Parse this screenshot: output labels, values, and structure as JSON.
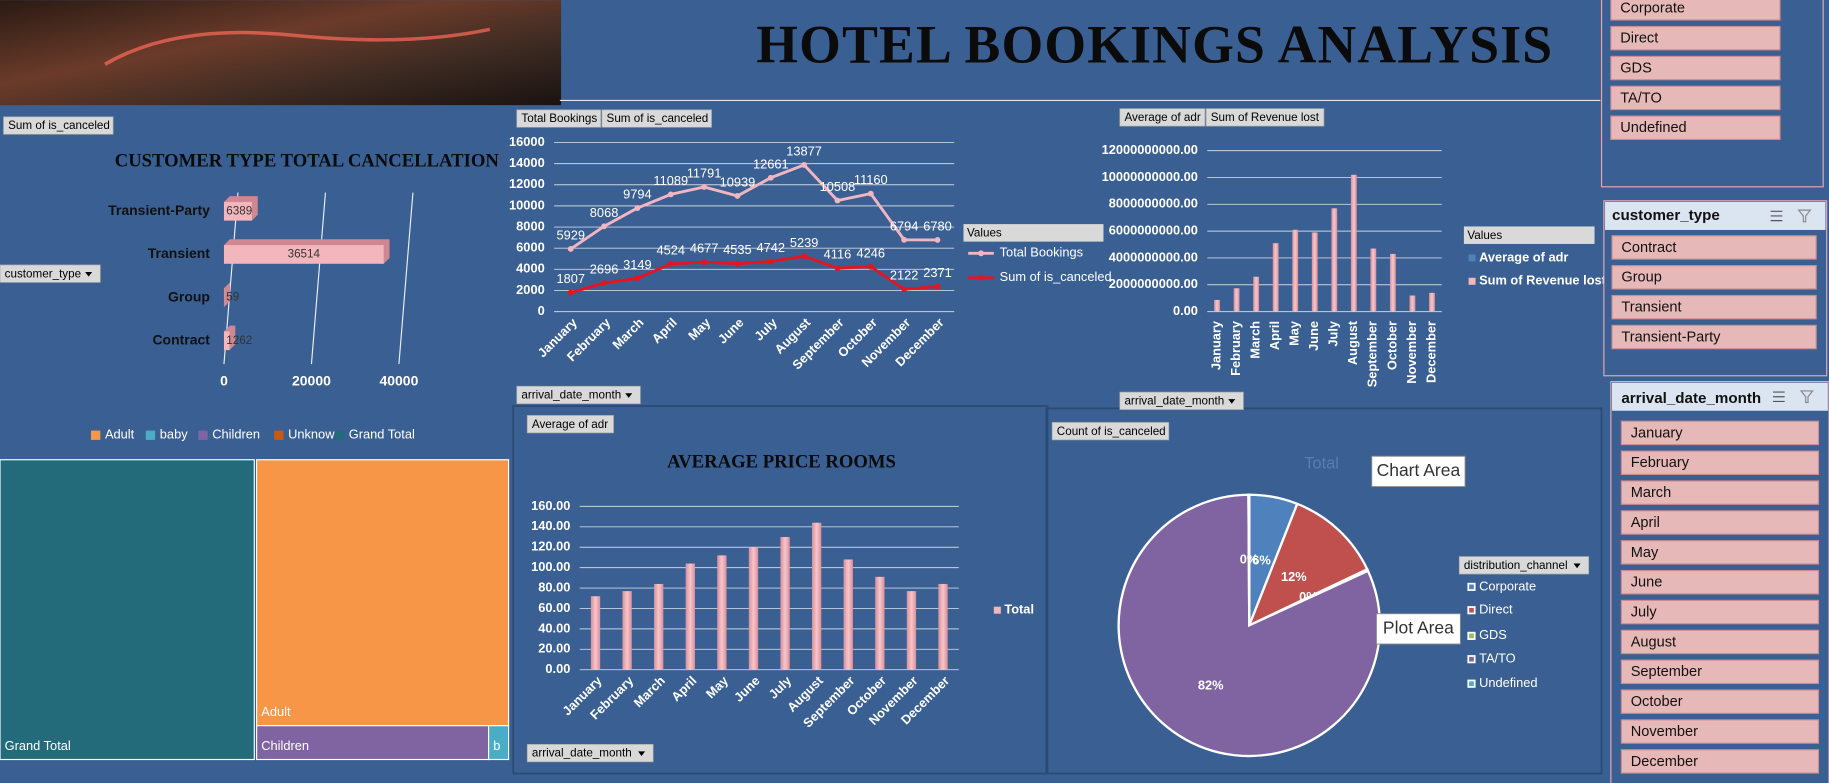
{
  "header": {
    "title": "HOTEL BOOKINGS ANALYSIS"
  },
  "chart_data": [
    {
      "type": "hbar",
      "title": "CUSTOMER TYPE TOTAL CANCELLATION",
      "field_buttons": [
        "Sum of is_canceled",
        "customer_type"
      ],
      "categories": [
        "Transient-Party",
        "Transient",
        "Group",
        "Contract"
      ],
      "values": [
        6389,
        36514,
        59,
        1262
      ],
      "color": "#f4b6bd",
      "xlim": [
        0,
        40000
      ],
      "xticks": [
        0,
        20000,
        40000
      ]
    },
    {
      "type": "line",
      "field_buttons": [
        "Total Bookings",
        "Sum of is_canceled",
        "arrival_date_month"
      ],
      "legend_title": "Values",
      "categories": [
        "January",
        "February",
        "March",
        "April",
        "May",
        "June",
        "July",
        "August",
        "September",
        "October",
        "November",
        "December"
      ],
      "series": [
        {
          "name": "Total Bookings",
          "color": "#f2b6c0",
          "values": [
            5929,
            8068,
            9794,
            11089,
            11791,
            10939,
            12661,
            13877,
            10508,
            11160,
            6794,
            6780
          ]
        },
        {
          "name": "Sum of is_canceled",
          "color": "#e3161f",
          "values": [
            1807,
            2696,
            3149,
            4524,
            4677,
            4535,
            4742,
            5239,
            4116,
            4246,
            2122,
            2371
          ]
        }
      ],
      "ylim": [
        0,
        16000
      ],
      "yticks": [
        0,
        2000,
        4000,
        6000,
        8000,
        10000,
        12000,
        14000,
        16000
      ],
      "grid": true
    },
    {
      "type": "bar",
      "field_buttons": [
        "Average of adr",
        "Sum of Revenue lost",
        "arrival_date_month"
      ],
      "legend_title": "Values",
      "categories": [
        "January",
        "February",
        "March",
        "April",
        "May",
        "June",
        "July",
        "August",
        "September",
        "October",
        "November",
        "December"
      ],
      "series": [
        {
          "name": "Average of adr",
          "color": "#4f81bd",
          "values": [
            70,
            74,
            81,
            101,
            109,
            117,
            127,
            141,
            105,
            88,
            74,
            81
          ]
        },
        {
          "name": "Sum of Revenue lost",
          "color": "#f4b6bd",
          "values": [
            870000000,
            1740000000,
            2600000000,
            5100000000,
            6100000000,
            5900000000,
            7700000000,
            10200000000,
            4700000000,
            4300000000,
            1200000000,
            1400000000
          ]
        }
      ],
      "ylim": [
        0,
        12000000000
      ],
      "yticks": [
        {
          "value": 0,
          "label": "0.00"
        },
        {
          "value": 2000000000,
          "label": "2000000000.00"
        },
        {
          "value": 4000000000,
          "label": "4000000000.00"
        },
        {
          "value": 6000000000,
          "label": "6000000000.00"
        },
        {
          "value": 8000000000,
          "label": "8000000000.00"
        },
        {
          "value": 10000000000,
          "label": "10000000000.00"
        },
        {
          "value": 12000000000,
          "label": "12000000000.00"
        }
      ],
      "grid": true
    },
    {
      "type": "bar",
      "title": "AVERAGE PRICE ROOMS",
      "field_buttons": [
        "Average of adr",
        "arrival_date_month"
      ],
      "categories": [
        "January",
        "February",
        "March",
        "April",
        "May",
        "June",
        "July",
        "August",
        "September",
        "October",
        "November",
        "December"
      ],
      "series": [
        {
          "name": "Total",
          "color": "#f4b6bd",
          "values": [
            72,
            77,
            84,
            104,
            112,
            120,
            130,
            144,
            108,
            91,
            77,
            84
          ]
        }
      ],
      "ylim": [
        0,
        160
      ],
      "yticks": [
        {
          "value": 0,
          "label": "0.00"
        },
        {
          "value": 20,
          "label": "20.00"
        },
        {
          "value": 40,
          "label": "40.00"
        },
        {
          "value": 60,
          "label": "60.00"
        },
        {
          "value": 80,
          "label": "80.00"
        },
        {
          "value": 100,
          "label": "100.00"
        },
        {
          "value": 120,
          "label": "120.00"
        },
        {
          "value": 140,
          "label": "140.00"
        },
        {
          "value": 160,
          "label": "160.00"
        }
      ],
      "grid": true
    },
    {
      "type": "pie",
      "title": "Total",
      "field_buttons": [
        "Count of is_canceled",
        "distribution_channel"
      ],
      "categories": [
        "Corporate",
        "Direct",
        "GDS",
        "TA/TO",
        "Undefined"
      ],
      "values": [
        6,
        12,
        0.2,
        82,
        0.1
      ],
      "value_labels": [
        "6%",
        "12%",
        "0%",
        "82%",
        "0%"
      ],
      "colors": [
        "#4f81bd",
        "#c0504d",
        "#9bbb59",
        "#8064a2",
        "#4bacc6"
      ],
      "annotations": [
        "Chart Area",
        "Plot Area"
      ]
    },
    {
      "type": "treemap",
      "categories": [
        "Adult",
        "baby",
        "Children",
        "Unknown",
        "Grand Total"
      ],
      "colors": [
        "#f79646",
        "#4bacc6",
        "#8064a2",
        "#c55a11",
        "#236a7a"
      ],
      "values": [
        49500,
        500,
        5800,
        0,
        55800
      ],
      "tile_labels": [
        "Adult",
        "b",
        "Children",
        null,
        "Grand Total"
      ]
    }
  ],
  "slicers": [
    {
      "items": [
        "Corporate",
        "Direct",
        "GDS",
        "TA/TO",
        "Undefined"
      ]
    },
    {
      "title": "customer_type",
      "items": [
        "Contract",
        "Group",
        "Transient",
        "Transient-Party"
      ]
    },
    {
      "title": "arrival_date_month",
      "items": [
        "January",
        "February",
        "March",
        "April",
        "May",
        "June",
        "July",
        "August",
        "September",
        "October",
        "November",
        "December"
      ]
    }
  ]
}
